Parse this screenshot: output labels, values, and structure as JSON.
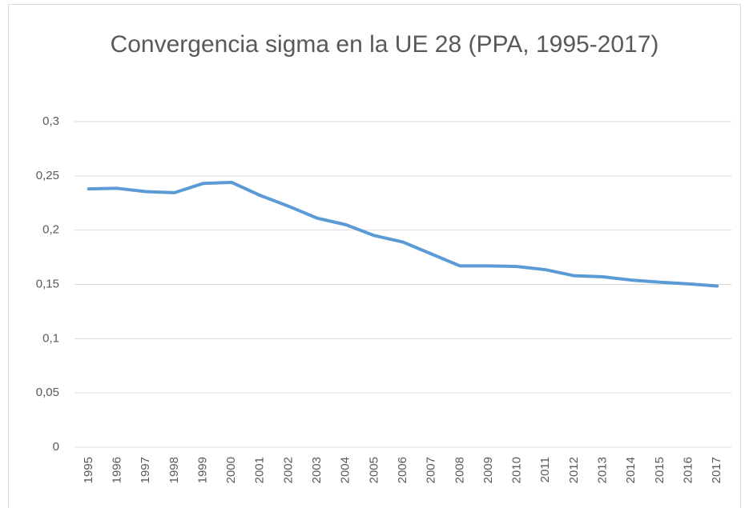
{
  "chart_data": {
    "type": "line",
    "title": "Convergencia sigma en la UE 28 (PPA, 1995-2017)",
    "categories": [
      "1995",
      "1996",
      "1997",
      "1998",
      "1999",
      "2000",
      "2001",
      "2002",
      "2003",
      "2004",
      "2005",
      "2006",
      "2007",
      "2008",
      "2009",
      "2010",
      "2011",
      "2012",
      "2013",
      "2014",
      "2015",
      "2016",
      "2017"
    ],
    "series": [
      {
        "name": "Convergencia sigma",
        "color": "#5b9bd5",
        "values": [
          0.238,
          0.2385,
          0.2355,
          0.2345,
          0.243,
          0.244,
          0.232,
          0.222,
          0.211,
          0.205,
          0.195,
          0.189,
          0.178,
          0.167,
          0.167,
          0.1665,
          0.1635,
          0.158,
          0.157,
          0.154,
          0.152,
          0.1505,
          0.1485
        ]
      }
    ],
    "ylim": [
      0,
      0.3
    ],
    "yticks": [
      0,
      {
        "value": 0.05,
        "label": "0,05"
      },
      {
        "value": 0.1,
        "label": "0,1"
      },
      {
        "value": 0.15,
        "label": "0,15"
      },
      {
        "value": 0.2,
        "label": "0,2"
      },
      {
        "value": 0.25,
        "label": "0,25"
      },
      {
        "value": 0.3,
        "label": "0,3"
      }
    ],
    "grid": true
  }
}
